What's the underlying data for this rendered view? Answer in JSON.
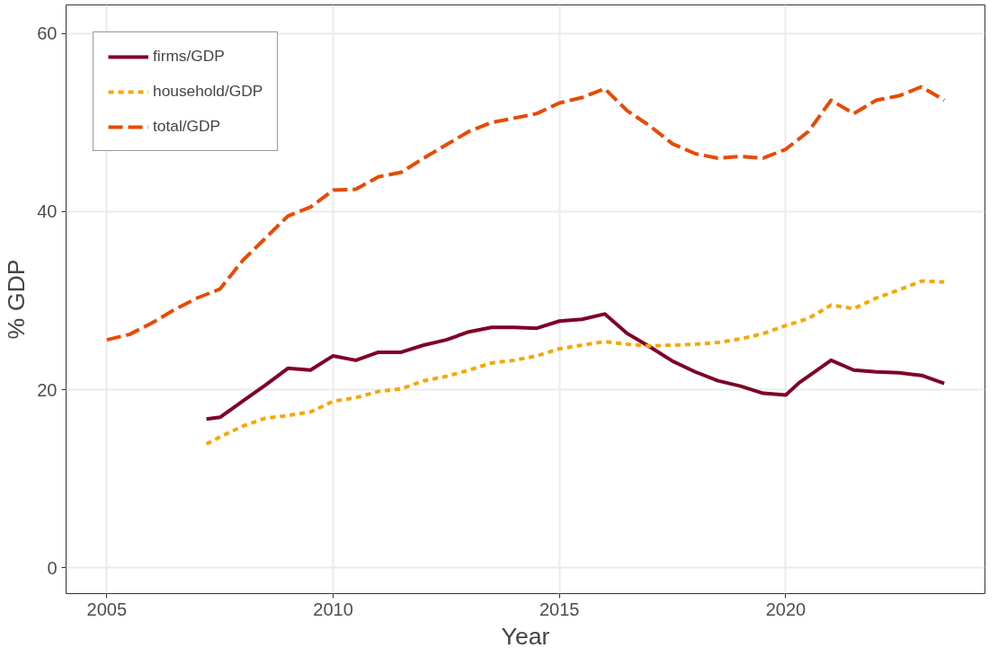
{
  "chart_data": {
    "type": "line",
    "xlabel": "Year",
    "ylabel": "% GDP",
    "xlim": [
      2004.1,
      2024.4
    ],
    "ylim": [
      -2.9,
      63.2
    ],
    "xticks": [
      2005,
      2010,
      2015,
      2020
    ],
    "yticks": [
      0,
      20,
      40,
      60
    ],
    "grid": true,
    "legend": "top left",
    "series": [
      {
        "name": "firms/GDP",
        "color": "#7f0026",
        "line_style": "solid",
        "x": [
          2007.2,
          2007.5,
          2008,
          2008.5,
          2009,
          2009.5,
          2010,
          2010.5,
          2011,
          2011.5,
          2012,
          2012.5,
          2013,
          2013.5,
          2014,
          2014.5,
          2015,
          2015.5,
          2016,
          2016.5,
          2017,
          2017.5,
          2018,
          2018.5,
          2019,
          2019.5,
          2020,
          2020.3,
          2020.5,
          2021,
          2021.5,
          2022,
          2022.5,
          2023,
          2023.5
        ],
        "values": [
          16.7,
          16.9,
          18.7,
          20.5,
          22.4,
          22.2,
          23.8,
          23.3,
          24.2,
          24.2,
          25,
          25.6,
          26.5,
          27,
          27,
          26.9,
          27.7,
          27.9,
          28.5,
          26.3,
          24.8,
          23.2,
          22,
          21,
          20.4,
          19.6,
          19.4,
          20.8,
          21.5,
          23.3,
          22.2,
          22,
          21.9,
          21.6,
          20.7
        ]
      },
      {
        "name": "household/GDP",
        "color": "#f5a800",
        "line_style": "dotted",
        "x": [
          2007.2,
          2007.5,
          2008,
          2008.5,
          2009,
          2009.5,
          2010,
          2010.5,
          2011,
          2011.5,
          2012,
          2012.5,
          2013,
          2013.5,
          2014,
          2014.5,
          2015,
          2015.5,
          2016,
          2016.5,
          2017,
          2017.5,
          2018,
          2018.5,
          2019,
          2019.5,
          2020,
          2020.5,
          2021,
          2021.5,
          2022,
          2022.5,
          2023,
          2023.5
        ],
        "values": [
          13.9,
          14.7,
          15.9,
          16.8,
          17.1,
          17.5,
          18.7,
          19.1,
          19.8,
          20.1,
          21,
          21.5,
          22.2,
          23,
          23.3,
          23.8,
          24.6,
          25,
          25.4,
          25.1,
          24.9,
          25,
          25.1,
          25.3,
          25.7,
          26.3,
          27.2,
          28,
          29.5,
          29.1,
          30.3,
          31.2,
          32.2,
          32.1
        ]
      },
      {
        "name": "total/GDP",
        "color": "#e84a00",
        "line_style": "dashed",
        "x": [
          2005,
          2005.5,
          2006,
          2006.5,
          2007,
          2007.5,
          2008,
          2008.5,
          2009,
          2009.5,
          2010,
          2010.5,
          2011,
          2011.5,
          2012,
          2012.5,
          2013,
          2013.5,
          2014,
          2014.5,
          2015,
          2015.5,
          2016,
          2016.5,
          2017,
          2017.5,
          2018,
          2018.5,
          2019,
          2019.5,
          2020,
          2020.5,
          2021,
          2021.5,
          2022,
          2022.5,
          2023,
          2023.5
        ],
        "values": [
          25.6,
          26.2,
          27.5,
          29,
          30.3,
          31.3,
          34.5,
          37,
          39.5,
          40.5,
          42.4,
          42.5,
          43.9,
          44.4,
          46,
          47.5,
          49,
          50,
          50.5,
          51,
          52.2,
          52.8,
          53.8,
          51.3,
          49.6,
          47.6,
          46.5,
          46,
          46.2,
          46,
          47,
          49,
          52.5,
          51,
          52.5,
          53,
          54,
          52.5
        ]
      }
    ]
  }
}
